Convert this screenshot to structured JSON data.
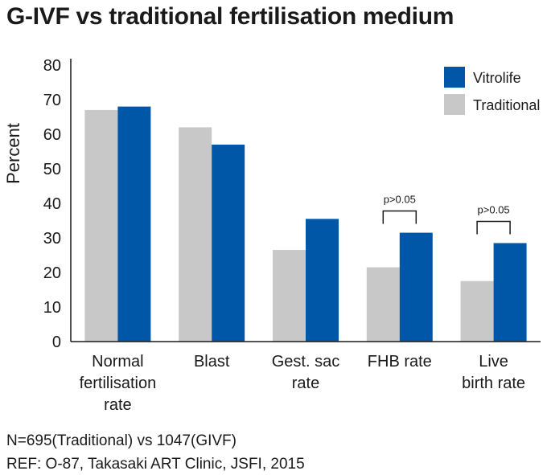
{
  "title": "G-IVF vs traditional fertilisation medium",
  "notes": {
    "sample": "N=695(Traditional) vs 1047(GIVF)",
    "reference": "REF: O-87, Takasaki ART Clinic, JSFI, 2015"
  },
  "chart_data": {
    "type": "bar",
    "title": "G-IVF vs traditional fertilisation medium",
    "xlabel": "",
    "ylabel": "Percent",
    "ylim": [
      0,
      80
    ],
    "yticks": [
      0,
      10,
      20,
      30,
      40,
      50,
      60,
      70,
      80
    ],
    "grid": false,
    "legend_position": "top-right",
    "categories": [
      [
        "Normal",
        "fertilisation",
        "rate"
      ],
      [
        "Blast"
      ],
      [
        "Gest. sac",
        "rate"
      ],
      [
        "FHB rate"
      ],
      [
        "Live",
        "birth rate"
      ]
    ],
    "series": [
      {
        "name": "Traditional",
        "color": "#c8c8c8",
        "values": [
          67,
          62,
          26.5,
          21.5,
          17.5
        ]
      },
      {
        "name": "Vitrolife",
        "color": "#0057a8",
        "values": [
          68,
          57,
          35.5,
          31.5,
          28.5
        ]
      }
    ],
    "legend_order": [
      "Vitrolife",
      "Traditional"
    ],
    "annotations": [
      {
        "category_index": 3,
        "text": "p>0.05"
      },
      {
        "category_index": 4,
        "text": "p>0.05"
      }
    ]
  }
}
